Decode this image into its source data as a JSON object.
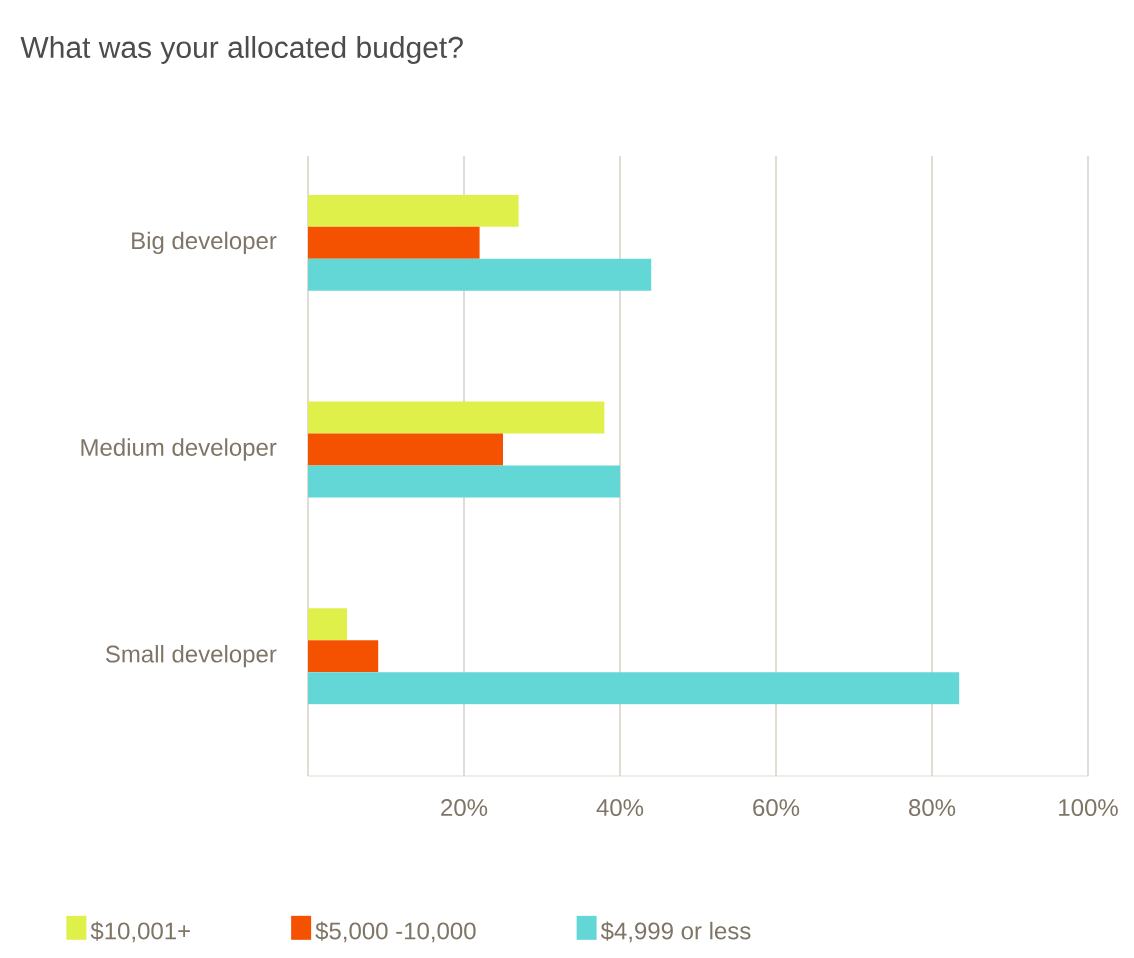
{
  "chart_data": {
    "type": "bar",
    "orientation": "horizontal",
    "title": "What was your allocated budget?",
    "categories": [
      "Big developer",
      "Medium developer",
      "Small developer"
    ],
    "series": [
      {
        "name": "$10,001+",
        "color": "#dff04a",
        "values": [
          27,
          38,
          5
        ]
      },
      {
        "name": "$5,000 -10,000",
        "color": "#f45200",
        "values": [
          22,
          25,
          9
        ]
      },
      {
        "name": "$4,999 or less",
        "color": "#63d7d6",
        "values": [
          44,
          40,
          83.5
        ]
      }
    ],
    "xlim": [
      0,
      100
    ],
    "xticks": [
      {
        "value": 0,
        "label": null
      },
      {
        "value": 20,
        "label": "20%"
      },
      {
        "value": 40,
        "label": "40%"
      },
      {
        "value": 60,
        "label": "60%"
      },
      {
        "value": 80,
        "label": "80%"
      },
      {
        "value": 100,
        "label": "100%"
      }
    ],
    "grid": "x",
    "legend": "bottom"
  }
}
